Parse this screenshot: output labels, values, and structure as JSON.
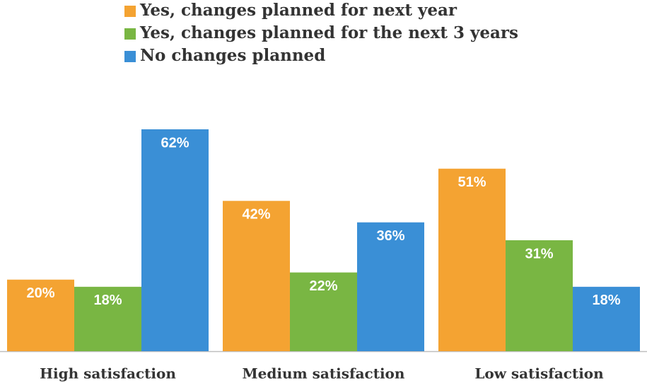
{
  "chart_data": {
    "type": "bar",
    "categories": [
      "High satisfaction",
      "Medium satisfaction",
      "Low satisfaction"
    ],
    "series": [
      {
        "name": "Yes, changes planned for next year",
        "color": "#f4a332",
        "values": [
          20,
          42,
          51
        ],
        "value_labels": [
          "20%",
          "42%",
          "51%"
        ]
      },
      {
        "name": "Yes, changes planned for the next 3 years",
        "color": "#79b643",
        "values": [
          18,
          22,
          31
        ],
        "value_labels": [
          "18%",
          "22%",
          "31%"
        ]
      },
      {
        "name": "No changes planned",
        "color": "#3a8fd6",
        "values": [
          62,
          36,
          18
        ],
        "value_labels": [
          "62%",
          "36%",
          "18%"
        ]
      }
    ]
  }
}
